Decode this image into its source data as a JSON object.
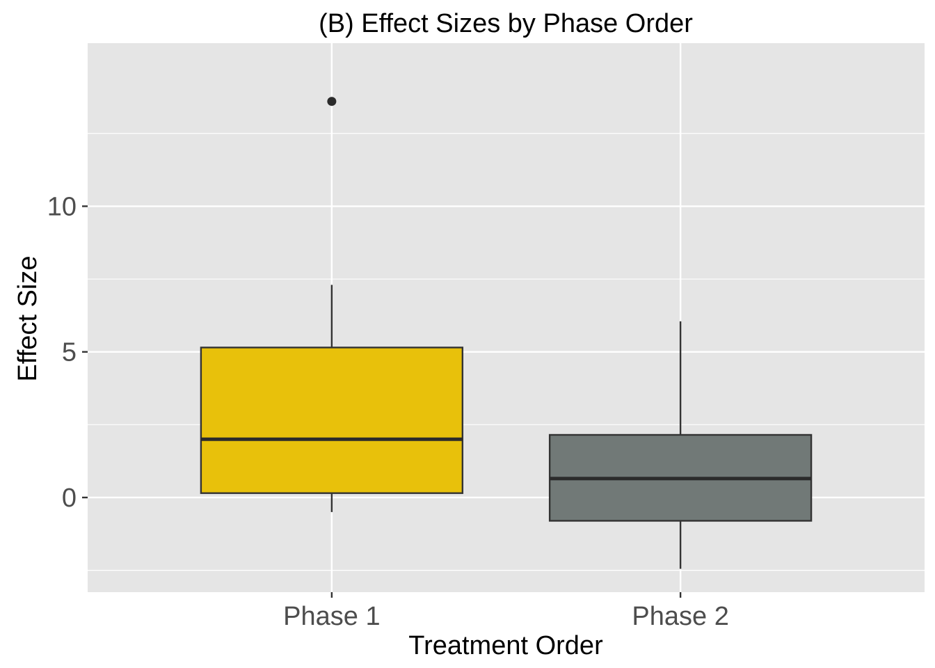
{
  "chart_data": {
    "type": "boxplot",
    "title": "(B) Effect Sizes by Phase Order",
    "xlabel": "Treatment Order",
    "ylabel": "Effect Size",
    "categories": [
      "Phase 1",
      "Phase 2"
    ],
    "ylim": [
      -3.25,
      15.6
    ],
    "y_ticks": [
      0,
      5,
      10
    ],
    "y_tick_labels": [
      "0",
      "5",
      "10"
    ],
    "y_minor_ticks": [
      -2.5,
      2.5,
      7.5,
      12.5
    ],
    "grid": true,
    "legend": "none",
    "panel_background": "#e5e5e5",
    "series": [
      {
        "category": "Phase 1",
        "whisker_low": -0.5,
        "q1": 0.15,
        "median": 2.0,
        "q3": 5.15,
        "whisker_high": 7.3,
        "outliers": [
          13.6
        ],
        "fill": "#e8c10b"
      },
      {
        "category": "Phase 2",
        "whisker_low": -2.45,
        "q1": -0.8,
        "median": 0.65,
        "q3": 2.15,
        "whisker_high": 6.05,
        "outliers": [],
        "fill": "#717977"
      }
    ]
  }
}
